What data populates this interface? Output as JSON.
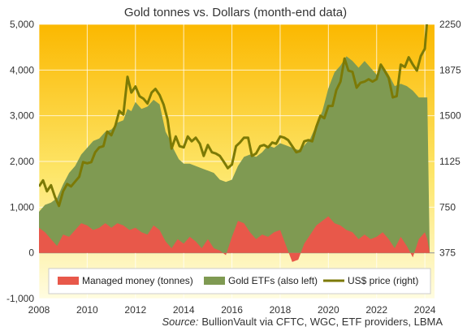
{
  "chart_data": {
    "type": "area",
    "title": "Gold tonnes vs. Dollars (month-end data)",
    "source_label": "Source:",
    "source_text": "BullionVault via CFTC, WGC, ETF providers, LBMA",
    "x_ticks": [
      "2008",
      "2010",
      "2012",
      "2014",
      "2016",
      "2018",
      "2020",
      "2022",
      "2024"
    ],
    "y_left_ticks": [
      "-1,000",
      "0",
      "1,000",
      "2,000",
      "3,000",
      "4,000",
      "5,000"
    ],
    "y_right_ticks": [
      "375",
      "750",
      "1125",
      "1500",
      "1875",
      "2250"
    ],
    "x_range": [
      2008.0,
      2024.4
    ],
    "y_left_range": [
      -1000,
      5000
    ],
    "y_right_range": [
      0,
      2250
    ],
    "legend": [
      "Managed money (tonnes)",
      "Gold ETFs (also left)",
      "US$ price (right)"
    ],
    "colors": {
      "managed_money": "#e8584a",
      "gold_etfs": "#7f9a52",
      "us_price": "#7c7a06",
      "background_top": "#fbb800",
      "background_bottom": "#fffce0"
    },
    "series": [
      {
        "name": "Gold ETFs (also left)",
        "axis": "left",
        "x": [
          2008.0,
          2008.25,
          2008.5,
          2008.75,
          2009.0,
          2009.25,
          2009.5,
          2009.75,
          2010.0,
          2010.25,
          2010.5,
          2010.75,
          2011.0,
          2011.25,
          2011.5,
          2011.67,
          2011.83,
          2012.0,
          2012.25,
          2012.5,
          2012.75,
          2013.0,
          2013.25,
          2013.4,
          2013.6,
          2013.8,
          2014.0,
          2014.25,
          2014.5,
          2014.75,
          2015.0,
          2015.25,
          2015.5,
          2015.75,
          2016.0,
          2016.25,
          2016.5,
          2016.75,
          2017.0,
          2017.25,
          2017.5,
          2017.75,
          2018.0,
          2018.25,
          2018.5,
          2018.75,
          2019.0,
          2019.25,
          2019.5,
          2019.75,
          2020.0,
          2020.25,
          2020.5,
          2020.75,
          2021.0,
          2021.25,
          2021.5,
          2021.75,
          2022.0,
          2022.25,
          2022.5,
          2022.75,
          2023.0,
          2023.25,
          2023.5,
          2023.75,
          2024.0,
          2024.1,
          2024.2
        ],
        "values": [
          900,
          1050,
          1100,
          1200,
          1500,
          1750,
          1900,
          2150,
          2300,
          2450,
          2500,
          2650,
          2700,
          2850,
          2900,
          3150,
          3100,
          3300,
          3150,
          3200,
          3350,
          3250,
          2650,
          2500,
          2250,
          2050,
          1950,
          1950,
          1900,
          1850,
          1800,
          1750,
          1600,
          1550,
          1600,
          1900,
          2100,
          2150,
          2100,
          2200,
          2350,
          2300,
          2400,
          2350,
          2300,
          2250,
          2350,
          2500,
          2800,
          3100,
          3600,
          3950,
          4100,
          4300,
          4200,
          4050,
          4200,
          4050,
          3900,
          4100,
          3900,
          3650,
          3700,
          3650,
          3550,
          3400,
          3400,
          3400,
          0
        ]
      },
      {
        "name": "Managed money (tonnes)",
        "axis": "left",
        "x": [
          2008.0,
          2008.25,
          2008.5,
          2008.75,
          2009.0,
          2009.25,
          2009.5,
          2009.75,
          2010.0,
          2010.25,
          2010.5,
          2010.75,
          2011.0,
          2011.25,
          2011.5,
          2011.75,
          2012.0,
          2012.25,
          2012.5,
          2012.75,
          2013.0,
          2013.25,
          2013.5,
          2013.75,
          2014.0,
          2014.25,
          2014.5,
          2014.75,
          2015.0,
          2015.25,
          2015.5,
          2015.75,
          2016.0,
          2016.25,
          2016.5,
          2016.75,
          2017.0,
          2017.25,
          2017.5,
          2017.75,
          2018.0,
          2018.25,
          2018.5,
          2018.75,
          2019.0,
          2019.25,
          2019.5,
          2019.75,
          2020.0,
          2020.25,
          2020.5,
          2020.75,
          2021.0,
          2021.25,
          2021.5,
          2021.75,
          2022.0,
          2022.25,
          2022.5,
          2022.75,
          2023.0,
          2023.25,
          2023.5,
          2023.75,
          2024.0,
          2024.1,
          2024.2
        ],
        "values": [
          550,
          450,
          300,
          150,
          400,
          350,
          500,
          650,
          600,
          500,
          550,
          650,
          550,
          650,
          600,
          500,
          550,
          450,
          400,
          600,
          500,
          250,
          100,
          300,
          200,
          350,
          250,
          100,
          300,
          100,
          50,
          -50,
          350,
          700,
          650,
          450,
          300,
          400,
          350,
          450,
          500,
          150,
          -200,
          -150,
          200,
          400,
          600,
          700,
          800,
          650,
          600,
          500,
          450,
          300,
          400,
          300,
          350,
          450,
          300,
          100,
          350,
          150,
          -100,
          300,
          450,
          300,
          0
        ]
      },
      {
        "name": "US$ price (right)",
        "axis": "right",
        "x": [
          2008.0,
          2008.17,
          2008.33,
          2008.5,
          2008.67,
          2008.83,
          2009.0,
          2009.17,
          2009.33,
          2009.5,
          2009.67,
          2009.83,
          2010.0,
          2010.17,
          2010.33,
          2010.5,
          2010.67,
          2010.83,
          2011.0,
          2011.17,
          2011.33,
          2011.5,
          2011.67,
          2011.83,
          2012.0,
          2012.17,
          2012.33,
          2012.5,
          2012.67,
          2012.83,
          2013.0,
          2013.17,
          2013.33,
          2013.5,
          2013.67,
          2013.83,
          2014.0,
          2014.17,
          2014.33,
          2014.5,
          2014.67,
          2014.83,
          2015.0,
          2015.17,
          2015.33,
          2015.5,
          2015.67,
          2015.83,
          2016.0,
          2016.17,
          2016.33,
          2016.5,
          2016.67,
          2016.83,
          2017.0,
          2017.17,
          2017.33,
          2017.5,
          2017.67,
          2017.83,
          2018.0,
          2018.17,
          2018.33,
          2018.5,
          2018.67,
          2018.83,
          2019.0,
          2019.17,
          2019.33,
          2019.5,
          2019.67,
          2019.83,
          2020.0,
          2020.17,
          2020.33,
          2020.5,
          2020.67,
          2020.83,
          2021.0,
          2021.17,
          2021.33,
          2021.5,
          2021.67,
          2021.83,
          2022.0,
          2022.17,
          2022.33,
          2022.5,
          2022.67,
          2022.83,
          2023.0,
          2023.17,
          2023.33,
          2023.5,
          2023.67,
          2023.83,
          2024.0,
          2024.1,
          2024.2
        ],
        "values": [
          920,
          970,
          880,
          930,
          830,
          760,
          880,
          940,
          920,
          960,
          1000,
          1120,
          1110,
          1120,
          1200,
          1240,
          1250,
          1370,
          1340,
          1420,
          1540,
          1510,
          1820,
          1690,
          1740,
          1660,
          1640,
          1600,
          1690,
          1720,
          1670,
          1590,
          1470,
          1230,
          1330,
          1250,
          1240,
          1330,
          1290,
          1320,
          1270,
          1170,
          1260,
          1200,
          1190,
          1170,
          1120,
          1070,
          1100,
          1250,
          1280,
          1320,
          1320,
          1170,
          1190,
          1250,
          1260,
          1240,
          1280,
          1270,
          1330,
          1320,
          1300,
          1250,
          1200,
          1210,
          1290,
          1300,
          1290,
          1410,
          1500,
          1480,
          1580,
          1580,
          1710,
          1780,
          1970,
          1870,
          1860,
          1730,
          1770,
          1780,
          1800,
          1780,
          1800,
          1920,
          1870,
          1810,
          1650,
          1660,
          1920,
          1900,
          1980,
          1920,
          1870,
          1990,
          2050,
          2300,
          2330
        ]
      }
    ]
  }
}
